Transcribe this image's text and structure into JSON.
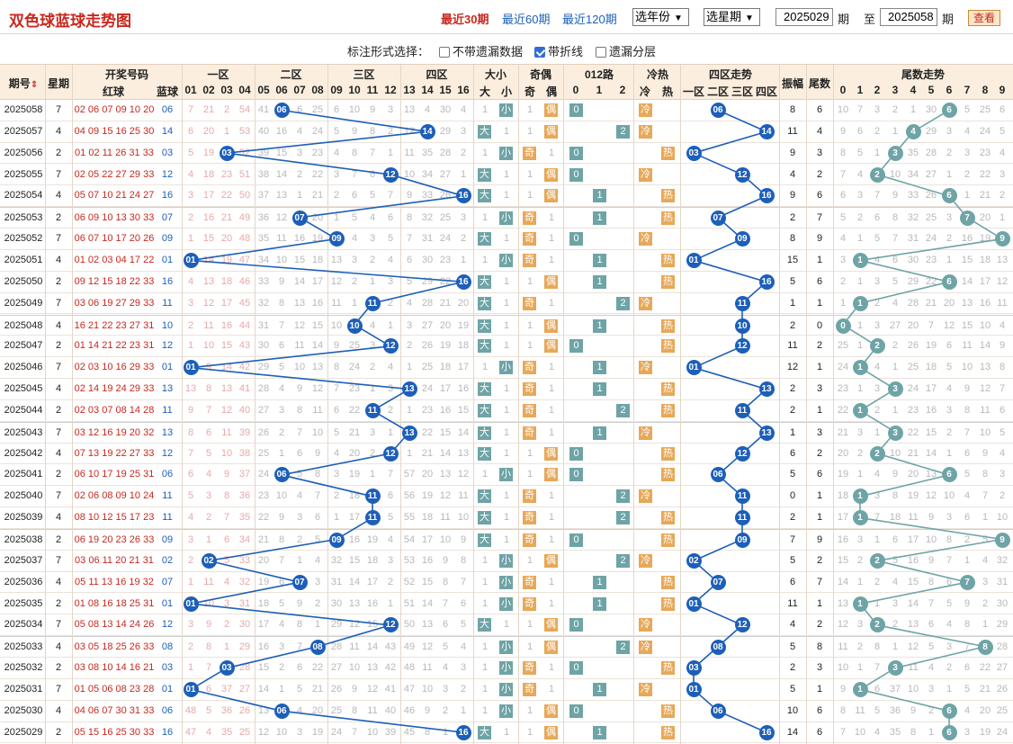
{
  "title": "双色球蓝球走势图",
  "period_links": [
    {
      "label": "最近30期",
      "active": true
    },
    {
      "label": "最近60期",
      "active": false
    },
    {
      "label": "最近120期",
      "active": false
    }
  ],
  "year_select": "选年份",
  "period_select": "选星期",
  "from_issue": "2025029",
  "to_issue": "2025058",
  "label_issue": "期",
  "label_to": "至",
  "query_button": "查看",
  "options": {
    "label": "标注形式选择：",
    "items": [
      {
        "label": "不带遗漏数据",
        "checked": false
      },
      {
        "label": "带折线",
        "checked": true
      },
      {
        "label": "遗漏分层",
        "checked": false
      }
    ]
  },
  "headers": {
    "issue": "期号",
    "sort_icon": "sort-arrows-icon",
    "week": "星期",
    "draw": "开奖号码",
    "red": "红球",
    "blue": "蓝球",
    "zones": [
      "一区",
      "二区",
      "三区",
      "四区"
    ],
    "nums": [
      "01",
      "02",
      "03",
      "04",
      "05",
      "06",
      "07",
      "08",
      "09",
      "10",
      "11",
      "12",
      "13",
      "14",
      "15",
      "16"
    ],
    "size": "大小",
    "big": "大",
    "small": "小",
    "parity": "奇偶",
    "odd": "奇",
    "even": "偶",
    "r012": "012路",
    "r0": "0",
    "r1": "1",
    "r2": "2",
    "temp": "冷热",
    "cold": "冷",
    "hot": "热",
    "zone_trend": "四区走势",
    "zt": [
      "一区",
      "二区",
      "三区",
      "四区"
    ],
    "amp": "振幅",
    "tail": "尾数",
    "tail_trend": "尾数走势",
    "digits": [
      "0",
      "1",
      "2",
      "3",
      "4",
      "5",
      "6",
      "7",
      "8",
      "9"
    ]
  },
  "colors": {
    "blue_ball": "#1d5fb8",
    "tail_ball": "#6fa4a6",
    "red_text": "#c8281e",
    "hot_tag": "#e7a859",
    "green_tag": "#6fa4a6"
  },
  "rows": [
    {
      "issue": "2025058",
      "week": "7",
      "red": "02 06 07 09 10 20",
      "blue": "06",
      "amp": "8",
      "tail": "6",
      "miss": [
        "7",
        "21",
        "2",
        "54",
        "41",
        "",
        "6",
        "25",
        "6",
        "10",
        "9",
        "3",
        "13",
        "4",
        "30",
        "4"
      ],
      "tails": [
        "10",
        "7",
        "3",
        "2",
        "1",
        "30",
        "",
        "5",
        "25",
        "6"
      ]
    },
    {
      "issue": "2025057",
      "week": "4",
      "red": "04 09 15 16 25 30",
      "blue": "14",
      "amp": "11",
      "tail": "4",
      "miss": [
        "6",
        "20",
        "1",
        "53",
        "40",
        "16",
        "4",
        "24",
        "5",
        "9",
        "8",
        "2",
        "12",
        "",
        "29",
        "3"
      ],
      "tails": [
        "9",
        "6",
        "2",
        "1",
        "",
        "29",
        "3",
        "4",
        "24",
        "5"
      ]
    },
    {
      "issue": "2025056",
      "week": "2",
      "red": "01 02 11 26 31 33",
      "blue": "03",
      "amp": "9",
      "tail": "3",
      "miss": [
        "5",
        "19",
        "",
        "52",
        "39",
        "15",
        "3",
        "23",
        "4",
        "8",
        "7",
        "1",
        "11",
        "35",
        "28",
        "2"
      ],
      "tails": [
        "8",
        "5",
        "1",
        "",
        "35",
        "28",
        "2",
        "3",
        "23",
        "4"
      ]
    },
    {
      "issue": "2025055",
      "week": "7",
      "red": "02 05 22 27 29 33",
      "blue": "12",
      "amp": "4",
      "tail": "2",
      "miss": [
        "4",
        "18",
        "23",
        "51",
        "38",
        "14",
        "2",
        "22",
        "3",
        "7",
        "6",
        "",
        "10",
        "34",
        "27",
        "1"
      ],
      "tails": [
        "7",
        "4",
        "",
        "10",
        "34",
        "27",
        "1",
        "2",
        "22",
        "3"
      ]
    },
    {
      "issue": "2025054",
      "week": "4",
      "red": "05 07 10 21 24 27",
      "blue": "16",
      "amp": "9",
      "tail": "6",
      "miss": [
        "3",
        "17",
        "22",
        "50",
        "37",
        "13",
        "1",
        "21",
        "2",
        "6",
        "5",
        "7",
        "9",
        "33",
        "26",
        ""
      ],
      "tails": [
        "6",
        "3",
        "7",
        "9",
        "33",
        "26",
        "",
        "1",
        "21",
        "2"
      ]
    },
    {
      "issue": "2025053",
      "week": "2",
      "red": "06 09 10 13 30 33",
      "blue": "07",
      "amp": "2",
      "tail": "7",
      "miss": [
        "2",
        "16",
        "21",
        "49",
        "36",
        "12",
        "",
        "20",
        "1",
        "5",
        "4",
        "6",
        "8",
        "32",
        "25",
        "3"
      ],
      "tails": [
        "5",
        "2",
        "6",
        "8",
        "32",
        "25",
        "3",
        "",
        "20",
        "1"
      ]
    },
    {
      "issue": "2025052",
      "week": "7",
      "red": "06 07 10 17 20 26",
      "blue": "09",
      "amp": "8",
      "tail": "9",
      "miss": [
        "1",
        "15",
        "20",
        "48",
        "35",
        "11",
        "16",
        "19",
        "",
        "4",
        "3",
        "5",
        "7",
        "31",
        "24",
        "2"
      ],
      "tails": [
        "4",
        "1",
        "5",
        "7",
        "31",
        "24",
        "2",
        "16",
        "19",
        ""
      ]
    },
    {
      "issue": "2025051",
      "week": "4",
      "red": "01 02 03 04 17 22",
      "blue": "01",
      "amp": "15",
      "tail": "1",
      "miss": [
        "",
        "14",
        "19",
        "47",
        "34",
        "10",
        "15",
        "18",
        "13",
        "3",
        "2",
        "4",
        "6",
        "30",
        "23",
        "1"
      ],
      "tails": [
        "3",
        "",
        "4",
        "6",
        "30",
        "23",
        "1",
        "15",
        "18",
        "13"
      ]
    },
    {
      "issue": "2025050",
      "week": "2",
      "red": "09 12 15 18 22 33",
      "blue": "16",
      "amp": "5",
      "tail": "6",
      "miss": [
        "4",
        "13",
        "18",
        "46",
        "33",
        "9",
        "14",
        "17",
        "12",
        "2",
        "1",
        "3",
        "5",
        "29",
        "22",
        ""
      ],
      "tails": [
        "2",
        "1",
        "3",
        "5",
        "29",
        "22",
        "",
        "14",
        "17",
        "12"
      ]
    },
    {
      "issue": "2025049",
      "week": "7",
      "red": "03 06 19 27 29 33",
      "blue": "11",
      "amp": "1",
      "tail": "1",
      "miss": [
        "3",
        "12",
        "17",
        "45",
        "32",
        "8",
        "13",
        "16",
        "11",
        "1",
        "",
        "2",
        "4",
        "28",
        "21",
        "20"
      ],
      "tails": [
        "1",
        "",
        "2",
        "4",
        "28",
        "21",
        "20",
        "13",
        "16",
        "11"
      ]
    },
    {
      "issue": "2025048",
      "week": "4",
      "red": "16 21 22 23 27 31",
      "blue": "10",
      "amp": "2",
      "tail": "0",
      "miss": [
        "2",
        "11",
        "16",
        "44",
        "31",
        "7",
        "12",
        "15",
        "10",
        "",
        "4",
        "1",
        "3",
        "27",
        "20",
        "19"
      ],
      "tails": [
        "",
        "1",
        "3",
        "27",
        "20",
        "7",
        "12",
        "15",
        "10",
        "4"
      ]
    },
    {
      "issue": "2025047",
      "week": "2",
      "red": "01 14 21 22 23 31",
      "blue": "12",
      "amp": "11",
      "tail": "2",
      "miss": [
        "1",
        "10",
        "15",
        "43",
        "30",
        "6",
        "11",
        "14",
        "9",
        "25",
        "3",
        "",
        "2",
        "26",
        "19",
        "18"
      ],
      "tails": [
        "25",
        "1",
        "",
        "2",
        "26",
        "19",
        "6",
        "11",
        "14",
        "9"
      ]
    },
    {
      "issue": "2025046",
      "week": "7",
      "red": "02 03 10 16 29 33",
      "blue": "01",
      "amp": "12",
      "tail": "1",
      "miss": [
        "",
        "9",
        "14",
        "42",
        "29",
        "5",
        "10",
        "13",
        "8",
        "24",
        "2",
        "4",
        "1",
        "25",
        "18",
        "17"
      ],
      "tails": [
        "24",
        "",
        "4",
        "1",
        "25",
        "18",
        "5",
        "10",
        "13",
        "8"
      ]
    },
    {
      "issue": "2025045",
      "week": "4",
      "red": "02 14 19 24 29 33",
      "blue": "13",
      "amp": "2",
      "tail": "3",
      "miss": [
        "13",
        "8",
        "13",
        "41",
        "28",
        "4",
        "9",
        "12",
        "7",
        "23",
        "1",
        "3",
        "",
        "24",
        "17",
        "16"
      ],
      "tails": [
        "23",
        "1",
        "3",
        "",
        "24",
        "17",
        "4",
        "9",
        "12",
        "7"
      ]
    },
    {
      "issue": "2025044",
      "week": "2",
      "red": "02 03 07 08 14 28",
      "blue": "11",
      "amp": "2",
      "tail": "1",
      "miss": [
        "9",
        "7",
        "12",
        "40",
        "27",
        "3",
        "8",
        "11",
        "6",
        "22",
        "",
        "2",
        "1",
        "23",
        "16",
        "15"
      ],
      "tails": [
        "22",
        "",
        "2",
        "1",
        "23",
        "16",
        "3",
        "8",
        "11",
        "6"
      ]
    },
    {
      "issue": "2025043",
      "week": "7",
      "red": "03 12 16 19 20 32",
      "blue": "13",
      "amp": "1",
      "tail": "3",
      "miss": [
        "8",
        "6",
        "11",
        "39",
        "26",
        "2",
        "7",
        "10",
        "5",
        "21",
        "3",
        "1",
        "",
        "22",
        "15",
        "14"
      ],
      "tails": [
        "21",
        "3",
        "1",
        "",
        "22",
        "15",
        "2",
        "7",
        "10",
        "5"
      ]
    },
    {
      "issue": "2025042",
      "week": "4",
      "red": "07 13 19 22 27 33",
      "blue": "12",
      "amp": "6",
      "tail": "2",
      "miss": [
        "7",
        "5",
        "10",
        "38",
        "25",
        "1",
        "6",
        "9",
        "4",
        "20",
        "2",
        "",
        "1",
        "21",
        "14",
        "13"
      ],
      "tails": [
        "20",
        "2",
        "",
        "10",
        "21",
        "14",
        "1",
        "6",
        "9",
        "4"
      ]
    },
    {
      "issue": "2025041",
      "week": "2",
      "red": "06 10 17 19 25 31",
      "blue": "06",
      "amp": "5",
      "tail": "6",
      "miss": [
        "6",
        "4",
        "9",
        "37",
        "24",
        "",
        "5",
        "8",
        "3",
        "19",
        "1",
        "7",
        "57",
        "20",
        "13",
        "12"
      ],
      "tails": [
        "19",
        "1",
        "4",
        "9",
        "20",
        "13",
        "",
        "5",
        "8",
        "3"
      ]
    },
    {
      "issue": "2025040",
      "week": "7",
      "red": "02 06 08 09 10 24",
      "blue": "11",
      "amp": "0",
      "tail": "1",
      "miss": [
        "5",
        "3",
        "8",
        "36",
        "23",
        "10",
        "4",
        "7",
        "2",
        "18",
        "",
        "6",
        "56",
        "19",
        "12",
        "11"
      ],
      "tails": [
        "18",
        "",
        "3",
        "8",
        "19",
        "12",
        "10",
        "4",
        "7",
        "2"
      ]
    },
    {
      "issue": "2025039",
      "week": "4",
      "red": "08 10 12 15 17 23",
      "blue": "11",
      "amp": "2",
      "tail": "1",
      "miss": [
        "4",
        "2",
        "7",
        "35",
        "22",
        "9",
        "3",
        "6",
        "1",
        "17",
        "",
        "5",
        "55",
        "18",
        "11",
        "10"
      ],
      "tails": [
        "17",
        "",
        "7",
        "18",
        "11",
        "9",
        "3",
        "6",
        "1",
        "10"
      ]
    },
    {
      "issue": "2025038",
      "week": "2",
      "red": "06 19 20 23 26 33",
      "blue": "09",
      "amp": "7",
      "tail": "9",
      "miss": [
        "3",
        "1",
        "6",
        "34",
        "21",
        "8",
        "2",
        "5",
        "",
        "16",
        "19",
        "4",
        "54",
        "17",
        "10",
        "9"
      ],
      "tails": [
        "16",
        "3",
        "1",
        "6",
        "17",
        "10",
        "8",
        "2",
        "5",
        ""
      ]
    },
    {
      "issue": "2025037",
      "week": "7",
      "red": "03 06 11 20 21 31",
      "blue": "02",
      "amp": "5",
      "tail": "2",
      "miss": [
        "2",
        "",
        "5",
        "33",
        "20",
        "7",
        "1",
        "4",
        "32",
        "15",
        "18",
        "3",
        "53",
        "16",
        "9",
        "8"
      ],
      "tails": [
        "15",
        "2",
        "",
        "5",
        "16",
        "9",
        "7",
        "1",
        "4",
        "32"
      ]
    },
    {
      "issue": "2025036",
      "week": "4",
      "red": "05 11 13 16 19 32",
      "blue": "07",
      "amp": "6",
      "tail": "7",
      "miss": [
        "1",
        "11",
        "4",
        "32",
        "19",
        "6",
        "",
        "3",
        "31",
        "14",
        "17",
        "2",
        "52",
        "15",
        "8",
        "7"
      ],
      "tails": [
        "14",
        "1",
        "2",
        "4",
        "15",
        "8",
        "6",
        "",
        "3",
        "31"
      ]
    },
    {
      "issue": "2025035",
      "week": "2",
      "red": "01 08 16 18 25 31",
      "blue": "01",
      "amp": "11",
      "tail": "1",
      "miss": [
        "",
        "10",
        "3",
        "31",
        "18",
        "5",
        "9",
        "2",
        "30",
        "13",
        "16",
        "1",
        "51",
        "14",
        "7",
        "6"
      ],
      "tails": [
        "13",
        "",
        "1",
        "3",
        "14",
        "7",
        "5",
        "9",
        "2",
        "30"
      ]
    },
    {
      "issue": "2025034",
      "week": "7",
      "red": "05 08 13 14 24 26",
      "blue": "12",
      "amp": "4",
      "tail": "2",
      "miss": [
        "3",
        "9",
        "2",
        "30",
        "17",
        "4",
        "8",
        "1",
        "29",
        "12",
        "15",
        "",
        "50",
        "13",
        "6",
        "5"
      ],
      "tails": [
        "12",
        "3",
        "",
        "2",
        "13",
        "6",
        "4",
        "8",
        "1",
        "29"
      ]
    },
    {
      "issue": "2025033",
      "week": "4",
      "red": "03 05 18 25 26 33",
      "blue": "08",
      "amp": "5",
      "tail": "8",
      "miss": [
        "2",
        "8",
        "1",
        "29",
        "16",
        "3",
        "7",
        "",
        "28",
        "11",
        "14",
        "43",
        "49",
        "12",
        "5",
        "4"
      ],
      "tails": [
        "11",
        "2",
        "8",
        "1",
        "12",
        "5",
        "3",
        "7",
        "",
        "28"
      ]
    },
    {
      "issue": "2025032",
      "week": "2",
      "red": "03 08 10 14 16 21",
      "blue": "03",
      "amp": "2",
      "tail": "3",
      "miss": [
        "1",
        "7",
        "",
        "28",
        "15",
        "2",
        "6",
        "22",
        "27",
        "10",
        "13",
        "42",
        "48",
        "11",
        "4",
        "3"
      ],
      "tails": [
        "10",
        "1",
        "7",
        "",
        "11",
        "4",
        "2",
        "6",
        "22",
        "27"
      ]
    },
    {
      "issue": "2025031",
      "week": "7",
      "red": "01 05 06 08 23 28",
      "blue": "01",
      "amp": "5",
      "tail": "1",
      "miss": [
        "",
        "6",
        "37",
        "27",
        "14",
        "1",
        "5",
        "21",
        "26",
        "9",
        "12",
        "41",
        "47",
        "10",
        "3",
        "2"
      ],
      "tails": [
        "9",
        "",
        "6",
        "37",
        "10",
        "3",
        "1",
        "5",
        "21",
        "26"
      ]
    },
    {
      "issue": "2025030",
      "week": "4",
      "red": "04 06 07 30 31 33",
      "blue": "06",
      "amp": "10",
      "tail": "6",
      "miss": [
        "48",
        "5",
        "36",
        "26",
        "13",
        "",
        "4",
        "20",
        "25",
        "8",
        "11",
        "40",
        "46",
        "9",
        "2",
        "1"
      ],
      "tails": [
        "8",
        "11",
        "5",
        "36",
        "9",
        "2",
        "",
        "4",
        "20",
        "25"
      ]
    },
    {
      "issue": "2025029",
      "week": "2",
      "red": "05 15 16 25 30 33",
      "blue": "16",
      "amp": "14",
      "tail": "6",
      "miss": [
        "47",
        "4",
        "35",
        "25",
        "12",
        "10",
        "3",
        "19",
        "24",
        "7",
        "10",
        "39",
        "45",
        "8",
        "1",
        ""
      ],
      "tails": [
        "7",
        "10",
        "4",
        "35",
        "8",
        "1",
        "",
        "3",
        "19",
        "24"
      ]
    }
  ]
}
